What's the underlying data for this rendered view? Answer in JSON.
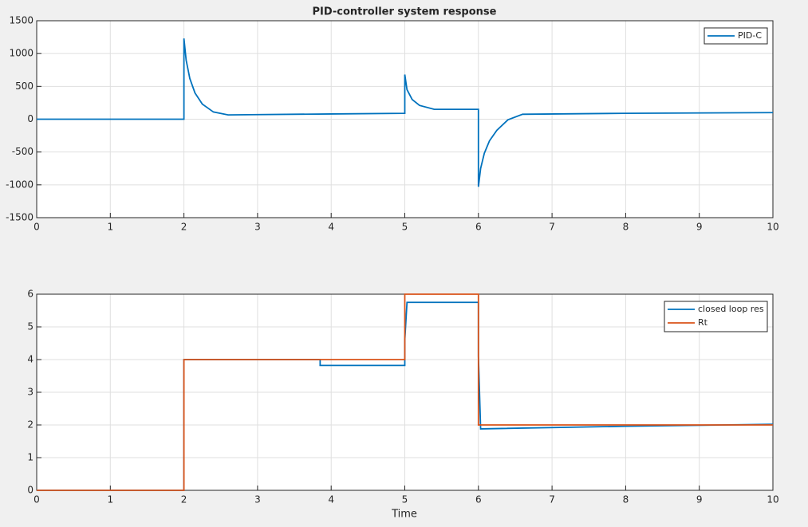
{
  "chart_data": [
    {
      "type": "line",
      "title": "PID-controller system response",
      "xlim": [
        0,
        10
      ],
      "ylim": [
        -1500,
        1500
      ],
      "xticks": [
        0,
        1,
        2,
        3,
        4,
        5,
        6,
        7,
        8,
        9,
        10
      ],
      "yticks": [
        -1500,
        -1000,
        -500,
        0,
        500,
        1000,
        1500
      ],
      "grid": true,
      "legend": "upper right",
      "series": [
        {
          "name": "PID-C",
          "color": "#0072bd",
          "x": [
            0,
            2,
            2,
            2.03,
            2.08,
            2.15,
            2.25,
            2.4,
            2.6,
            3,
            4,
            5,
            5,
            5.03,
            5.1,
            5.2,
            5.4,
            6,
            6,
            6.03,
            6.08,
            6.15,
            6.25,
            6.4,
            6.6,
            8,
            10
          ],
          "values": [
            0,
            0,
            1230,
            900,
            620,
            400,
            230,
            110,
            65,
            70,
            80,
            90,
            680,
            450,
            300,
            210,
            150,
            150,
            -1030,
            -750,
            -520,
            -330,
            -170,
            -10,
            75,
            90,
            100
          ]
        }
      ]
    },
    {
      "type": "line",
      "xlabel": "Time",
      "xlim": [
        0,
        10
      ],
      "ylim": [
        0,
        6
      ],
      "xticks": [
        0,
        1,
        2,
        3,
        4,
        5,
        6,
        7,
        8,
        9,
        10
      ],
      "yticks": [
        0,
        1,
        2,
        3,
        4,
        5,
        6
      ],
      "grid": true,
      "legend": "upper right",
      "series": [
        {
          "name": "closed loop res",
          "color": "#0072bd",
          "x": [
            0,
            2,
            2,
            3.85,
            3.85,
            5,
            5,
            5.03,
            6,
            6,
            6.03,
            8,
            10
          ],
          "values": [
            0,
            0,
            4,
            4,
            3.82,
            3.82,
            4.6,
            5.75,
            5.75,
            4.1,
            1.88,
            1.96,
            2.02
          ]
        },
        {
          "name": "Rt",
          "color": "#d95319",
          "x": [
            0,
            2,
            2,
            5,
            5,
            6,
            6,
            10
          ],
          "values": [
            0,
            0,
            4,
            4,
            6,
            6,
            2,
            2
          ]
        }
      ]
    }
  ]
}
